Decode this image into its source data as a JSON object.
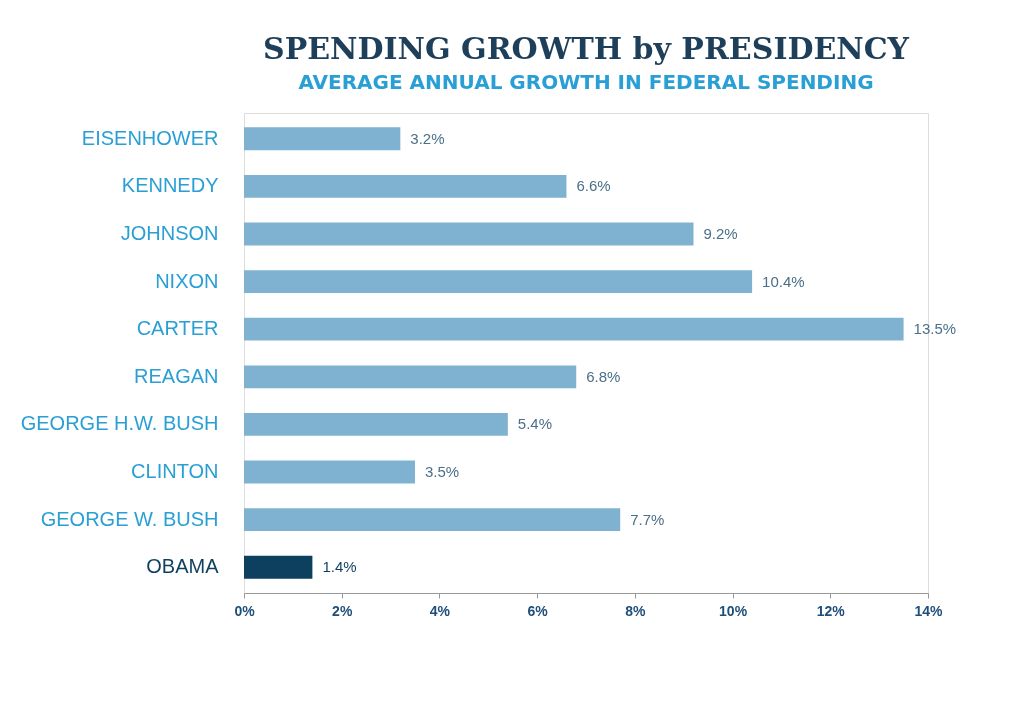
{
  "chart_data": {
    "type": "bar",
    "orientation": "horizontal",
    "title": "SPENDING GROWTH by PRESIDENCY",
    "subtitle": "AVERAGE ANNUAL GROWTH IN FEDERAL SPENDING",
    "categories": [
      "EISENHOWER",
      "KENNEDY",
      "JOHNSON",
      "NIXON",
      "CARTER",
      "REAGAN",
      "GEORGE H.W. BUSH",
      "CLINTON",
      "GEORGE W. BUSH",
      "OBAMA"
    ],
    "values": [
      3.2,
      6.6,
      9.2,
      10.4,
      13.5,
      6.8,
      5.4,
      3.5,
      7.7,
      1.4
    ],
    "value_labels": [
      "3.2%",
      "6.6%",
      "9.2%",
      "10.4%",
      "13.5%",
      "6.8%",
      "5.4%",
      "3.5%",
      "7.7%",
      "1.4%"
    ],
    "colors": [
      "#7fb2d0",
      "#7fb2d0",
      "#7fb2d0",
      "#7fb2d0",
      "#7fb2d0",
      "#7fb2d0",
      "#7fb2d0",
      "#7fb2d0",
      "#7fb2d0",
      "#0d3f5f"
    ],
    "xlim": [
      0,
      14
    ],
    "xticks": [
      {
        "value": 0,
        "label": "0%"
      },
      {
        "value": 2,
        "label": "2%"
      },
      {
        "value": 4,
        "label": "4%"
      },
      {
        "value": 6,
        "label": "6%"
      },
      {
        "value": 8,
        "label": "8%"
      },
      {
        "value": 10,
        "label": "10%"
      },
      {
        "value": 12,
        "label": "12%"
      },
      {
        "value": 14,
        "label": "14%"
      }
    ],
    "grid": false
  }
}
